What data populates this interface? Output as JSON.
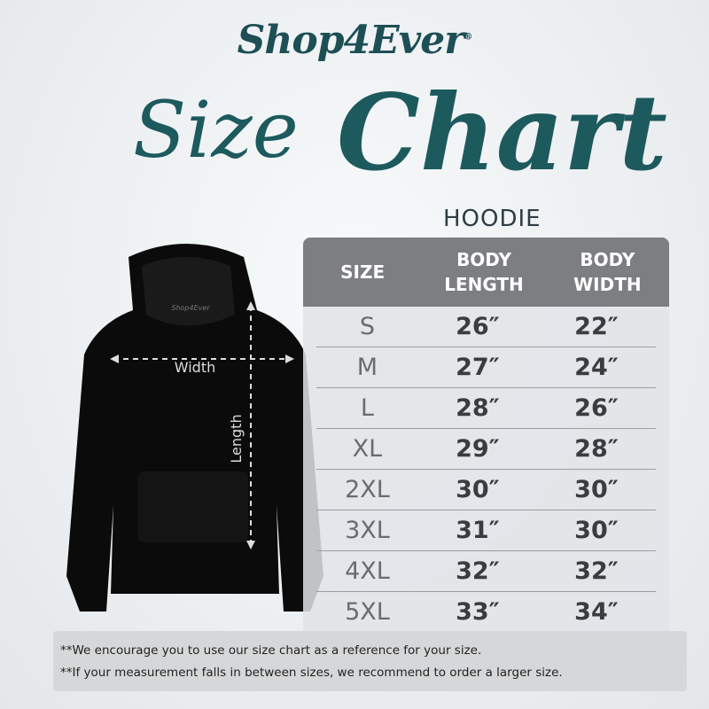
{
  "brand": {
    "name": "Shop4Ever",
    "registered": "®"
  },
  "title": {
    "word1": "Size",
    "word2": "Chart",
    "subtitle": "HOODIE"
  },
  "hoodie": {
    "print": "Shop4Ever",
    "width_label": "Width",
    "length_label": "Length"
  },
  "table": {
    "headers": [
      [
        "SIZE",
        ""
      ],
      [
        "BODY",
        "LENGTH"
      ],
      [
        "BODY",
        "WIDTH"
      ]
    ],
    "rows": [
      [
        "S",
        "26″",
        "22″"
      ],
      [
        "M",
        "27″",
        "24″"
      ],
      [
        "L",
        "28″",
        "26″"
      ],
      [
        "XL",
        "29″",
        "28″"
      ],
      [
        "2XL",
        "30″",
        "30″"
      ],
      [
        "3XL",
        "31″",
        "30″"
      ],
      [
        "4XL",
        "32″",
        "32″"
      ],
      [
        "5XL",
        "33″",
        "34″"
      ]
    ]
  },
  "notes": [
    "**We encourage you to use our size chart as a reference for your size.",
    "**If your measurement falls in between sizes, we recommend to order a larger size."
  ],
  "colors": {
    "brand": "#1d5a5e",
    "header": "#7c7e81",
    "note_bg": "#d6d7d8"
  }
}
